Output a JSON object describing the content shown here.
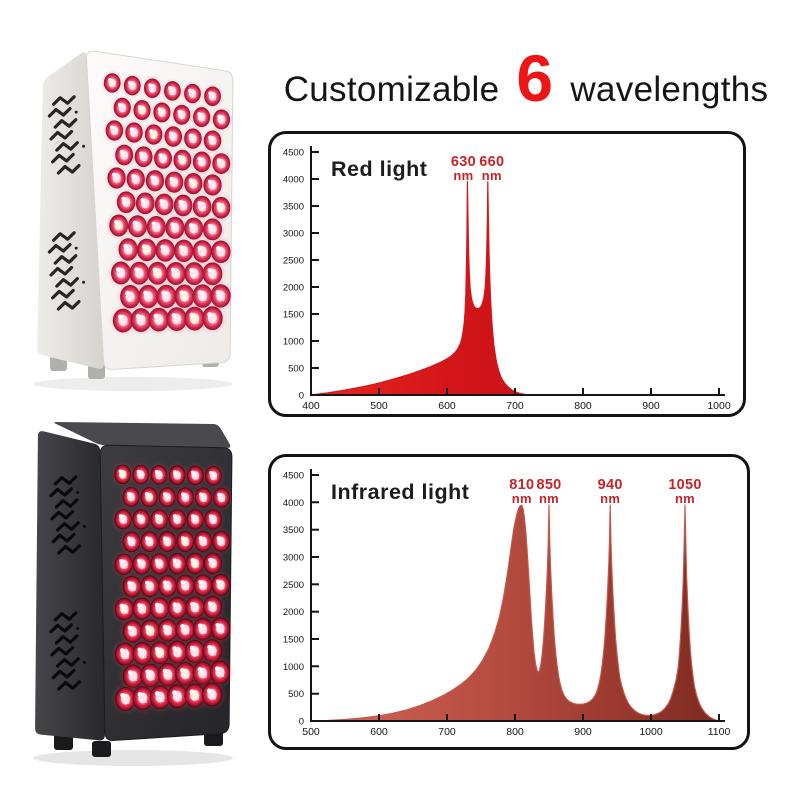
{
  "headline": {
    "prefix": "Customizable",
    "count": "6",
    "suffix": "wavelengths",
    "count_color": "#ee1515",
    "text_color": "#151515"
  },
  "products": [
    {
      "name": "white-led-panel",
      "description": "white LED light-therapy panel with red LED array and side vents",
      "rows": 11,
      "cols": 6,
      "side_colors": [
        "#eeece8",
        "#d6d3cf"
      ],
      "front_colors": [
        "#fdfcfb",
        "#efecea"
      ],
      "top_color": null,
      "edge_color": "#d8d5d1",
      "vent_color": "#262626",
      "foot_color": "#b2b0ac",
      "led_ring": "#a2122f",
      "led_stops": [
        "#ffffff",
        "#ffe4e6",
        "#ff9fb2",
        "#ea4a6b",
        "#c21f44",
        "#a2122f"
      ],
      "glow_color": "255,100,125"
    },
    {
      "name": "black-led-panel",
      "description": "black LED light-therapy panel with red LED array and side vents",
      "rows": 11,
      "cols": 6,
      "side_colors": [
        "#47464b",
        "#29282c"
      ],
      "front_colors": [
        "#3d3c41",
        "#27262a"
      ],
      "top_color": "#4a494e",
      "edge_color": "#1c1b1e",
      "vent_color": "#0a0a0a",
      "foot_color": "#1a191c",
      "led_ring": "#55060f",
      "led_stops": [
        "#fff4f2",
        "#ffd4d6",
        "#ff7f94",
        "#e02b4d",
        "#a5122c",
        "#6f0b1f"
      ],
      "glow_color": "255,70,90"
    }
  ],
  "chart_data": [
    {
      "type": "area",
      "name": "red-light",
      "title": "Red light",
      "title_color": "#1c1c1c",
      "axis_color": "#161616",
      "label_color": "#cb222a",
      "x_unit": "nm",
      "xlim": [
        400,
        1000
      ],
      "xticks": [
        400,
        500,
        600,
        700,
        800,
        900,
        1000
      ],
      "ylim": [
        0,
        4500
      ],
      "yticks": [
        0,
        500,
        1000,
        1500,
        2000,
        2500,
        3000,
        3500,
        4000,
        4500
      ],
      "grid": false,
      "legend": false,
      "peaks": [
        {
          "wavelength": "630",
          "unit": "nm",
          "nm": 630,
          "value": 3950
        },
        {
          "wavelength": "660",
          "unit": "nm",
          "nm": 660,
          "value": 3950
        }
      ],
      "fill_stops": [
        "#e8271f",
        "#d4161a",
        "#c21014",
        "#ae0c10"
      ],
      "curve": [
        [
          400,
          0
        ],
        [
          425,
          40
        ],
        [
          450,
          90
        ],
        [
          475,
          150
        ],
        [
          500,
          220
        ],
        [
          520,
          290
        ],
        [
          540,
          365
        ],
        [
          560,
          450
        ],
        [
          575,
          520
        ],
        [
          588,
          590
        ],
        [
          598,
          655
        ],
        [
          606,
          720
        ],
        [
          612,
          790
        ],
        [
          616,
          860
        ],
        [
          620,
          960
        ],
        [
          622,
          1060
        ],
        [
          624,
          1200
        ],
        [
          625.5,
          1350
        ],
        [
          626.6,
          1550
        ],
        [
          627.6,
          1850
        ],
        [
          628.4,
          2250
        ],
        [
          629.1,
          2750
        ],
        [
          629.6,
          3350
        ],
        [
          630,
          3950
        ],
        [
          630.4,
          3600
        ],
        [
          631,
          3150
        ],
        [
          631.8,
          2650
        ],
        [
          632.8,
          2250
        ],
        [
          634,
          1980
        ],
        [
          636,
          1780
        ],
        [
          639,
          1660
        ],
        [
          642,
          1610
        ],
        [
          645,
          1600
        ],
        [
          648,
          1610
        ],
        [
          651,
          1660
        ],
        [
          654,
          1780
        ],
        [
          656.2,
          1980
        ],
        [
          657.4,
          2250
        ],
        [
          658.4,
          2650
        ],
        [
          659.2,
          3150
        ],
        [
          659.7,
          3600
        ],
        [
          660,
          3950
        ],
        [
          660.4,
          3600
        ],
        [
          661,
          3150
        ],
        [
          661.8,
          2650
        ],
        [
          662.8,
          2200
        ],
        [
          664,
          1800
        ],
        [
          665.5,
          1450
        ],
        [
          667,
          1180
        ],
        [
          669,
          920
        ],
        [
          671,
          740
        ],
        [
          673,
          600
        ],
        [
          676,
          450
        ],
        [
          679,
          345
        ],
        [
          682,
          270
        ],
        [
          686,
          200
        ],
        [
          690,
          148
        ],
        [
          694,
          106
        ],
        [
          698,
          74
        ],
        [
          703,
          46
        ],
        [
          708,
          26
        ],
        [
          714,
          12
        ],
        [
          722,
          4
        ],
        [
          735,
          0
        ],
        [
          1000,
          0
        ]
      ]
    },
    {
      "type": "area",
      "name": "infrared-light",
      "title": "Infrared light",
      "title_color": "#1c1c1c",
      "axis_color": "#161616",
      "label_color": "#cb222a",
      "x_unit": "nm",
      "xlim": [
        500,
        1100
      ],
      "xticks": [
        500,
        600,
        700,
        800,
        900,
        1000,
        1100
      ],
      "ylim": [
        0,
        4500
      ],
      "yticks": [
        0,
        500,
        1000,
        1500,
        2000,
        2500,
        3000,
        3500,
        4000,
        4500
      ],
      "grid": false,
      "legend": false,
      "peaks": [
        {
          "wavelength": "810",
          "unit": "nm",
          "nm": 810,
          "value": 3950
        },
        {
          "wavelength": "850",
          "unit": "nm",
          "nm": 850,
          "value": 3950
        },
        {
          "wavelength": "940",
          "unit": "nm",
          "nm": 940,
          "value": 3950
        },
        {
          "wavelength": "1050",
          "unit": "nm",
          "nm": 1050,
          "value": 3950
        }
      ],
      "fill_stops": [
        "#d66a5c",
        "#c3574a",
        "#b24a3e",
        "#9a392e",
        "#7b2a21"
      ],
      "curve": [
        [
          500,
          0
        ],
        [
          525,
          10
        ],
        [
          550,
          28
        ],
        [
          575,
          55
        ],
        [
          600,
          95
        ],
        [
          620,
          140
        ],
        [
          640,
          200
        ],
        [
          660,
          280
        ],
        [
          678,
          370
        ],
        [
          694,
          465
        ],
        [
          708,
          565
        ],
        [
          720,
          665
        ],
        [
          732,
          790
        ],
        [
          743,
          940
        ],
        [
          753,
          1120
        ],
        [
          762,
          1340
        ],
        [
          770,
          1600
        ],
        [
          777,
          1900
        ],
        [
          783,
          2250
        ],
        [
          789,
          2700
        ],
        [
          794,
          3150
        ],
        [
          798,
          3500
        ],
        [
          802,
          3750
        ],
        [
          805,
          3880
        ],
        [
          807,
          3930
        ],
        [
          810,
          3950
        ],
        [
          812,
          3870
        ],
        [
          814,
          3700
        ],
        [
          816,
          3440
        ],
        [
          818,
          3100
        ],
        [
          820,
          2700
        ],
        [
          822,
          2280
        ],
        [
          824,
          1880
        ],
        [
          826,
          1540
        ],
        [
          828,
          1260
        ],
        [
          830,
          1060
        ],
        [
          832,
          940
        ],
        [
          834,
          890
        ],
        [
          836,
          920
        ],
        [
          838,
          1030
        ],
        [
          840,
          1220
        ],
        [
          842,
          1500
        ],
        [
          844,
          1870
        ],
        [
          846,
          2330
        ],
        [
          848,
          2870
        ],
        [
          849,
          3300
        ],
        [
          849.6,
          3700
        ],
        [
          850,
          3950
        ],
        [
          850.4,
          3700
        ],
        [
          851,
          3300
        ],
        [
          852,
          2870
        ],
        [
          854,
          2330
        ],
        [
          856,
          1870
        ],
        [
          858,
          1500
        ],
        [
          860,
          1220
        ],
        [
          862,
          1000
        ],
        [
          864,
          830
        ],
        [
          866,
          700
        ],
        [
          869,
          560
        ],
        [
          872,
          470
        ],
        [
          876,
          400
        ],
        [
          880,
          355
        ],
        [
          885,
          325
        ],
        [
          890,
          310
        ],
        [
          895,
          305
        ],
        [
          900,
          310
        ],
        [
          905,
          325
        ],
        [
          910,
          355
        ],
        [
          914,
          400
        ],
        [
          918,
          470
        ],
        [
          921,
          560
        ],
        [
          924,
          700
        ],
        [
          926,
          830
        ],
        [
          928,
          1000
        ],
        [
          930,
          1220
        ],
        [
          932,
          1500
        ],
        [
          934,
          1870
        ],
        [
          936,
          2330
        ],
        [
          938,
          2870
        ],
        [
          939,
          3300
        ],
        [
          939.6,
          3700
        ],
        [
          940,
          3950
        ],
        [
          940.4,
          3700
        ],
        [
          941,
          3300
        ],
        [
          942,
          2870
        ],
        [
          944,
          2330
        ],
        [
          946,
          1870
        ],
        [
          948,
          1500
        ],
        [
          950,
          1220
        ],
        [
          952,
          1000
        ],
        [
          954,
          800
        ],
        [
          957,
          640
        ],
        [
          960,
          520
        ],
        [
          963,
          420
        ],
        [
          966,
          340
        ],
        [
          970,
          265
        ],
        [
          974,
          210
        ],
        [
          978,
          170
        ],
        [
          982,
          140
        ],
        [
          986,
          120
        ],
        [
          990,
          108
        ],
        [
          995,
          102
        ],
        [
          1000,
          105
        ],
        [
          1005,
          115
        ],
        [
          1010,
          135
        ],
        [
          1015,
          170
        ],
        [
          1020,
          225
        ],
        [
          1025,
          310
        ],
        [
          1029,
          410
        ],
        [
          1033,
          560
        ],
        [
          1037,
          760
        ],
        [
          1040,
          980
        ],
        [
          1042,
          1280
        ],
        [
          1044,
          1650
        ],
        [
          1046,
          2150
        ],
        [
          1047.5,
          2600
        ],
        [
          1048.6,
          3100
        ],
        [
          1049.4,
          3600
        ],
        [
          1050,
          3950
        ],
        [
          1050.6,
          3600
        ],
        [
          1051.4,
          3100
        ],
        [
          1052.5,
          2600
        ],
        [
          1054,
          2150
        ],
        [
          1056,
          1650
        ],
        [
          1058,
          1280
        ],
        [
          1060,
          1000
        ],
        [
          1062,
          790
        ],
        [
          1064,
          630
        ],
        [
          1067,
          470
        ],
        [
          1070,
          360
        ],
        [
          1073,
          275
        ],
        [
          1076,
          210
        ],
        [
          1079,
          158
        ],
        [
          1082,
          118
        ],
        [
          1085,
          86
        ],
        [
          1088,
          60
        ],
        [
          1091,
          40
        ],
        [
          1094,
          24
        ],
        [
          1097,
          12
        ],
        [
          1100,
          4
        ]
      ]
    }
  ]
}
